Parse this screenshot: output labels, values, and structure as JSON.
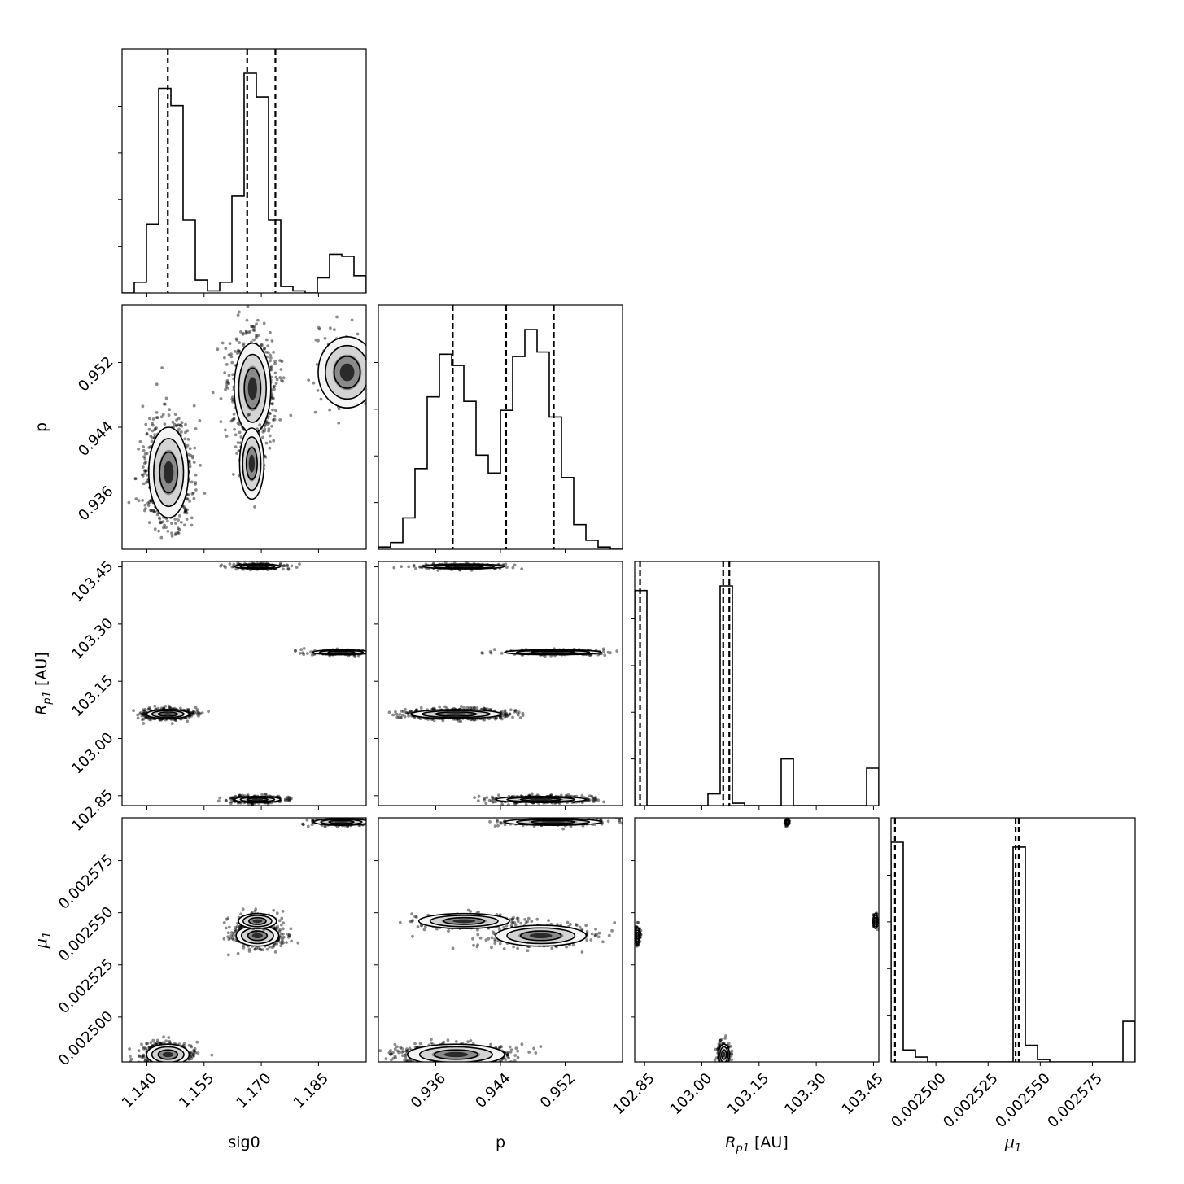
{
  "chart_data": {
    "type": "corner",
    "parameters": [
      {
        "key": "sig0",
        "label": "sig0",
        "range": [
          1.1335,
          1.1975
        ],
        "ticks": [
          1.14,
          1.155,
          1.17,
          1.185
        ],
        "tick_labels": [
          "1.140",
          "1.155",
          "1.170",
          "1.185"
        ]
      },
      {
        "key": "p",
        "label": "p",
        "range": [
          0.9289,
          0.9591
        ],
        "ticks": [
          0.936,
          0.944,
          0.952
        ],
        "tick_labels": [
          "0.936",
          "0.944",
          "0.952"
        ]
      },
      {
        "key": "Rp1",
        "label": "R_p1 [AU]",
        "label_main": "R",
        "label_sub": "p1",
        "label_suffix": " [AU]",
        "range": [
          102.824,
          103.464
        ],
        "ticks": [
          102.85,
          103.0,
          103.15,
          103.3,
          103.45
        ],
        "tick_labels": [
          "102.85",
          "103.00",
          "103.15",
          "103.30",
          "103.45"
        ]
      },
      {
        "key": "mu1",
        "label": "μ_1",
        "label_main": "μ",
        "label_sub": "1",
        "label_suffix": "",
        "range": [
          0.0024785,
          0.0025955
        ],
        "ticks": [
          0.0025,
          0.002525,
          0.00255,
          0.002575
        ],
        "tick_labels": [
          "0.002500",
          "0.002525",
          "0.002550",
          "0.002575"
        ]
      }
    ],
    "histograms": [
      {
        "param": "sig0",
        "bins": [
          1.1335,
          1.1367,
          1.1399,
          1.1431,
          1.1463,
          1.1495,
          1.1527,
          1.1559,
          1.1591,
          1.1623,
          1.1655,
          1.1687,
          1.1719,
          1.1751,
          1.1783,
          1.1815,
          1.1847,
          1.1879,
          1.1911,
          1.1943,
          1.1975
        ],
        "counts": [
          0.0,
          0.05,
          0.32,
          0.95,
          0.87,
          0.34,
          0.06,
          0.01,
          0.05,
          0.45,
          1.02,
          0.91,
          0.34,
          0.03,
          0.01,
          0.0,
          0.07,
          0.18,
          0.17,
          0.08
        ],
        "quantiles": [
          1.1455,
          1.1663,
          1.1737
        ]
      },
      {
        "param": "p",
        "bins": [
          0.9289,
          0.93041,
          0.93192,
          0.93343,
          0.93494,
          0.93645,
          0.93796,
          0.93947,
          0.94098,
          0.94249,
          0.944,
          0.94551,
          0.94702,
          0.94853,
          0.95004,
          0.95155,
          0.95306,
          0.95457,
          0.95608,
          0.95759,
          0.9591
        ],
        "counts": [
          0.01,
          0.03,
          0.14,
          0.36,
          0.68,
          0.87,
          0.82,
          0.66,
          0.42,
          0.34,
          0.62,
          0.86,
          0.98,
          0.88,
          0.59,
          0.32,
          0.11,
          0.04,
          0.01,
          0.0
        ],
        "quantiles": [
          0.9381,
          0.9447,
          0.9506
        ]
      },
      {
        "param": "Rp1",
        "bins": [
          102.824,
          102.856,
          102.888,
          102.92,
          102.952,
          102.984,
          103.016,
          103.048,
          103.08,
          103.112,
          103.144,
          103.176,
          103.208,
          103.24,
          103.272,
          103.304,
          103.336,
          103.368,
          103.4,
          103.432,
          103.464
        ],
        "counts": [
          0.92,
          0.0,
          0.0,
          0.0,
          0.0,
          0.0,
          0.05,
          0.94,
          0.01,
          0.0,
          0.0,
          0.0,
          0.2,
          0.0,
          0.0,
          0.0,
          0.0,
          0.0,
          0.0,
          0.16
        ],
        "quantiles": [
          102.838,
          103.056,
          103.072
        ]
      },
      {
        "param": "mu1",
        "bins": [
          0.0024785,
          0.00248435,
          0.0024902,
          0.00249605,
          0.0025019,
          0.00250775,
          0.0025136,
          0.00251945,
          0.0025253,
          0.00253115,
          0.002537,
          0.00254285,
          0.0025487,
          0.00255455,
          0.0025604,
          0.00256625,
          0.0025721,
          0.00257795,
          0.0025838,
          0.00258965,
          0.0025955
        ],
        "counts": [
          0.92,
          0.05,
          0.02,
          0.0,
          0.0,
          0.0,
          0.0,
          0.0,
          0.0,
          0.0,
          0.9,
          0.07,
          0.01,
          0.0,
          0.0,
          0.0,
          0.0,
          0.0,
          0.0,
          0.17
        ],
        "quantiles": [
          0.0024804,
          0.0025382,
          0.0025397
        ]
      },
      {
        "note_placeholder": ""
      }
    ],
    "joint_panels": [
      {
        "x": "sig0",
        "y": "p",
        "clusters": [
          {
            "mx": 1.1457,
            "my": 0.9384,
            "sx": 0.0026,
            "sy": 0.0028,
            "n": 900
          },
          {
            "mx": 1.1677,
            "my": 0.9488,
            "sx": 0.0024,
            "sy": 0.0028,
            "n": 750
          },
          {
            "mx": 1.1675,
            "my": 0.9395,
            "sx": 0.0016,
            "sy": 0.0022,
            "n": 90
          },
          {
            "mx": 1.1925,
            "my": 0.9508,
            "sx": 0.0038,
            "sy": 0.0022,
            "n": 160
          }
        ]
      },
      {
        "x": "sig0",
        "y": "Rp1",
        "clusters": [
          {
            "mx": 1.1455,
            "my": 103.064,
            "sx": 0.0028,
            "sy": 0.006,
            "n": 600
          },
          {
            "mx": 1.169,
            "my": 102.84,
            "sx": 0.003,
            "sy": 0.004,
            "n": 450
          },
          {
            "mx": 1.169,
            "my": 103.451,
            "sx": 0.003,
            "sy": 0.003,
            "n": 200
          },
          {
            "mx": 1.191,
            "my": 103.226,
            "sx": 0.0038,
            "sy": 0.002,
            "n": 200
          }
        ]
      },
      {
        "x": "p",
        "y": "Rp1",
        "clusters": [
          {
            "mx": 0.9385,
            "my": 103.064,
            "sx": 0.0028,
            "sy": 0.006,
            "n": 600
          },
          {
            "mx": 0.949,
            "my": 102.84,
            "sx": 0.0028,
            "sy": 0.004,
            "n": 450
          },
          {
            "mx": 0.9395,
            "my": 103.451,
            "sx": 0.0025,
            "sy": 0.003,
            "n": 200
          },
          {
            "mx": 0.9505,
            "my": 103.226,
            "sx": 0.003,
            "sy": 0.002,
            "n": 200
          }
        ]
      },
      {
        "x": "sig0",
        "y": "mu1",
        "clusters": [
          {
            "mx": 1.1455,
            "my": 0.002482,
            "sx": 0.0028,
            "sy": 2.5e-06,
            "n": 600
          },
          {
            "mx": 1.169,
            "my": 0.002539,
            "sx": 0.0028,
            "sy": 2.5e-06,
            "n": 450
          },
          {
            "mx": 1.169,
            "my": 0.002546,
            "sx": 0.0025,
            "sy": 1.8e-06,
            "n": 150
          },
          {
            "mx": 1.191,
            "my": 0.0025935,
            "sx": 0.0036,
            "sy": 8e-07,
            "n": 200
          }
        ]
      },
      {
        "x": "p",
        "y": "mu1",
        "clusters": [
          {
            "mx": 0.9385,
            "my": 0.002482,
            "sx": 0.003,
            "sy": 2.5e-06,
            "n": 600
          },
          {
            "mx": 0.949,
            "my": 0.002539,
            "sx": 0.0028,
            "sy": 2.5e-06,
            "n": 450
          },
          {
            "mx": 0.9395,
            "my": 0.002546,
            "sx": 0.0028,
            "sy": 1.8e-06,
            "n": 150
          },
          {
            "mx": 0.9505,
            "my": 0.0025935,
            "sx": 0.003,
            "sy": 8e-07,
            "n": 200
          }
        ]
      },
      {
        "x": "Rp1",
        "y": "mu1",
        "clusters": [
          {
            "mx": 102.831,
            "my": 0.002539,
            "sx": 0.003,
            "sy": 1.8e-06,
            "n": 200
          },
          {
            "mx": 103.058,
            "my": 0.002482,
            "sx": 0.007,
            "sy": 2.5e-06,
            "n": 300
          },
          {
            "mx": 103.224,
            "my": 0.0025935,
            "sx": 0.002,
            "sy": 8e-07,
            "n": 40
          },
          {
            "mx": 103.455,
            "my": 0.002546,
            "sx": 0.003,
            "sy": 1.8e-06,
            "n": 60
          }
        ]
      }
    ]
  }
}
